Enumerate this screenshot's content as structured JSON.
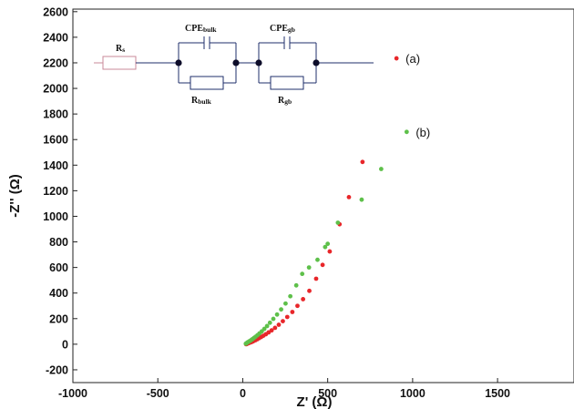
{
  "chart_data": {
    "type": "scatter",
    "title": "",
    "xlabel": "Z' (Ω)",
    "ylabel": "-Z'' (Ω)",
    "xlim": [
      -1000,
      1950
    ],
    "ylim": [
      -300,
      2620
    ],
    "x_ticks": [
      -1000,
      -500,
      0,
      500,
      1000,
      1500
    ],
    "y_ticks": [
      -200,
      0,
      200,
      400,
      600,
      800,
      1000,
      1200,
      1400,
      1600,
      1800,
      2000,
      2200,
      2400,
      2600
    ],
    "grid": false,
    "legend_placement": "inline-right",
    "series": [
      {
        "name": "(a)",
        "color": "#e8262a",
        "points": [
          [
            20,
            0
          ],
          [
            25,
            3
          ],
          [
            30,
            6
          ],
          [
            36,
            9
          ],
          [
            42,
            12
          ],
          [
            50,
            16
          ],
          [
            58,
            21
          ],
          [
            66,
            26
          ],
          [
            75,
            32
          ],
          [
            85,
            39
          ],
          [
            96,
            47
          ],
          [
            108,
            56
          ],
          [
            121,
            66
          ],
          [
            136,
            78
          ],
          [
            152,
            92
          ],
          [
            170,
            108
          ],
          [
            190,
            128
          ],
          [
            212,
            152
          ],
          [
            236,
            180
          ],
          [
            262,
            213
          ],
          [
            292,
            252
          ],
          [
            322,
            300
          ],
          [
            355,
            352
          ],
          [
            392,
            417
          ],
          [
            432,
            512
          ],
          [
            470,
            620
          ],
          [
            512,
            725
          ],
          [
            570,
            938
          ],
          [
            625,
            1150
          ],
          [
            705,
            1425
          ],
          [
            905,
            2235
          ]
        ]
      },
      {
        "name": "(b)",
        "color": "#5ec04a",
        "points": [
          [
            18,
            4
          ],
          [
            22,
            8
          ],
          [
            27,
            13
          ],
          [
            33,
            18
          ],
          [
            40,
            24
          ],
          [
            48,
            31
          ],
          [
            56,
            39
          ],
          [
            65,
            48
          ],
          [
            75,
            58
          ],
          [
            86,
            70
          ],
          [
            98,
            84
          ],
          [
            112,
            100
          ],
          [
            127,
            120
          ],
          [
            143,
            142
          ],
          [
            160,
            168
          ],
          [
            180,
            198
          ],
          [
            202,
            232
          ],
          [
            226,
            272
          ],
          [
            252,
            318
          ],
          [
            280,
            375
          ],
          [
            315,
            460
          ],
          [
            350,
            550
          ],
          [
            390,
            600
          ],
          [
            440,
            660
          ],
          [
            485,
            760
          ],
          [
            500,
            785
          ],
          [
            560,
            950
          ],
          [
            700,
            1130
          ],
          [
            815,
            1370
          ],
          [
            965,
            1660
          ]
        ]
      }
    ]
  },
  "inset": {
    "labels": {
      "rs_main": "R",
      "rs_sub": "s",
      "cpe_bulk_main": "CPE",
      "cpe_bulk_sub": "bulk",
      "cpe_gb_main": "CPE",
      "cpe_gb_sub": "gb",
      "r_bulk_main": "R",
      "r_bulk_sub": "bulk",
      "r_gb_main": "R",
      "r_gb_sub": "gb"
    }
  }
}
